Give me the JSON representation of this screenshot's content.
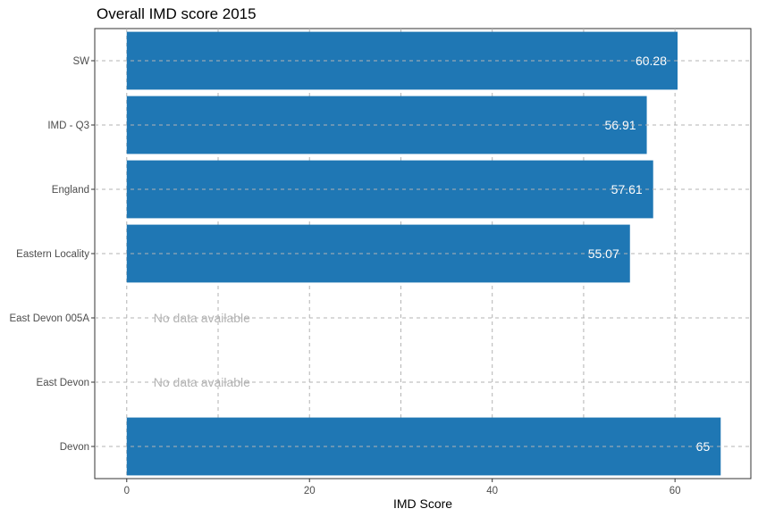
{
  "chart_data": {
    "type": "bar",
    "orientation": "horizontal",
    "title": "Overall IMD score 2015",
    "xlabel": "IMD Score",
    "ylabel": "",
    "xlim": [
      -3.5,
      68.3
    ],
    "xticks": [
      0,
      20,
      40,
      60
    ],
    "grid": true,
    "bar_color": "#1f77b4",
    "categories": [
      "SW",
      "IMD - Q3",
      "England",
      "Eastern Locality",
      "East Devon 005A",
      "East Devon",
      "Devon"
    ],
    "values": [
      60.28,
      56.91,
      57.61,
      55.07,
      null,
      null,
      65
    ],
    "value_labels": [
      "60.28",
      "56.91",
      "57.61",
      "55.07",
      "",
      "",
      "65"
    ],
    "missing_label": "No data available"
  }
}
